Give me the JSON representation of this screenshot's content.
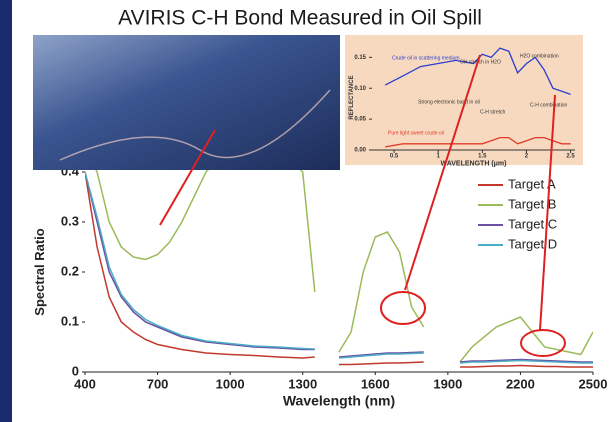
{
  "chart_data": [
    {
      "type": "line",
      "title": "AVIRIS C-H Bond Measured in Oil Spill",
      "xlabel": "Wavelength (nm)",
      "ylabel": "Spectral Ratio",
      "x": [
        400,
        450,
        500,
        550,
        600,
        650,
        700,
        750,
        800,
        900,
        1000,
        1100,
        1200,
        1300,
        1350,
        1400,
        1450,
        1500,
        1550,
        1600,
        1650,
        1700,
        1750,
        1800,
        1850,
        1950,
        2000,
        2050,
        2100,
        2150,
        2200,
        2250,
        2300,
        2350,
        2400,
        2450,
        2500
      ],
      "series": [
        {
          "name": "Target A",
          "color": "#c0392b",
          "values": [
            0.4,
            0.25,
            0.15,
            0.1,
            0.08,
            0.065,
            0.055,
            0.05,
            0.045,
            0.038,
            0.035,
            0.033,
            0.03,
            0.028,
            0.03,
            null,
            0.015,
            0.015,
            0.016,
            0.017,
            0.018,
            0.018,
            0.019,
            0.02,
            null,
            0.01,
            0.01,
            0.011,
            0.012,
            0.012,
            0.013,
            0.012,
            0.011,
            0.011,
            0.01,
            0.01,
            0.01
          ]
        },
        {
          "name": "Target B",
          "color": "#9bbb59",
          "values": [
            0.45,
            0.4,
            0.3,
            0.25,
            0.23,
            0.225,
            0.235,
            0.26,
            0.3,
            0.4,
            0.45,
            0.5,
            0.45,
            0.4,
            0.16,
            null,
            0.04,
            0.08,
            0.2,
            0.27,
            0.28,
            0.24,
            0.13,
            0.09,
            null,
            0.02,
            0.05,
            0.07,
            0.09,
            0.1,
            0.11,
            0.08,
            0.05,
            0.045,
            0.04,
            0.035,
            0.08
          ]
        },
        {
          "name": "Target C",
          "color": "#6a4fa3",
          "values": [
            0.4,
            0.3,
            0.2,
            0.15,
            0.12,
            0.1,
            0.09,
            0.08,
            0.07,
            0.06,
            0.055,
            0.05,
            0.048,
            0.045,
            0.045,
            null,
            0.03,
            0.032,
            0.034,
            0.036,
            0.038,
            0.038,
            0.039,
            0.04,
            null,
            0.02,
            0.022,
            0.022,
            0.023,
            0.024,
            0.025,
            0.024,
            0.023,
            0.022,
            0.021,
            0.02,
            0.02
          ]
        },
        {
          "name": "Target D",
          "color": "#4bacc6",
          "values": [
            0.4,
            0.31,
            0.21,
            0.155,
            0.125,
            0.105,
            0.093,
            0.083,
            0.073,
            0.062,
            0.057,
            0.052,
            0.05,
            0.047,
            0.046,
            null,
            0.028,
            0.03,
            0.032,
            0.034,
            0.036,
            0.036,
            0.037,
            0.038,
            null,
            0.018,
            0.02,
            0.02,
            0.021,
            0.022,
            0.023,
            0.022,
            0.021,
            0.02,
            0.019,
            0.018,
            0.018
          ]
        }
      ],
      "xlim": [
        400,
        2500
      ],
      "xticks": [
        400,
        700,
        1000,
        1300,
        1600,
        1900,
        2200,
        2500
      ],
      "ylim": [
        0,
        0.4
      ],
      "yticks": [
        0,
        0.1,
        0.2,
        0.3,
        0.4
      ]
    },
    {
      "type": "line",
      "xlabel": "WAVELENGTH (μm)",
      "ylabel": "REFLECTANCE",
      "x": [
        0.4,
        0.6,
        0.8,
        1.0,
        1.2,
        1.4,
        1.5,
        1.6,
        1.7,
        1.8,
        1.9,
        2.0,
        2.1,
        2.2,
        2.3,
        2.4,
        2.5
      ],
      "series": [
        {
          "color": "#2a3fd1",
          "values": [
            0.105,
            0.12,
            0.135,
            0.14,
            0.145,
            0.14,
            0.155,
            0.15,
            0.165,
            0.16,
            0.125,
            0.14,
            0.15,
            0.13,
            0.1,
            0.095,
            0.09
          ]
        },
        {
          "color": "#e03a2a",
          "values": [
            0.005,
            0.01,
            0.01,
            0.01,
            0.01,
            0.01,
            0.01,
            0.015,
            0.02,
            0.02,
            0.01,
            0.015,
            0.02,
            0.02,
            0.015,
            0.01,
            0.01
          ]
        }
      ],
      "xlim": [
        0.25,
        2.55
      ],
      "xticks": [
        0.5,
        1.0,
        1.5,
        2.0,
        2.5
      ],
      "ylim": [
        0,
        0.17
      ],
      "yticks": [
        {
          "value": 0,
          "label": "0.00"
        },
        0.05,
        {
          "value": 0.1,
          "label": "0.10"
        },
        0.15
      ],
      "annotations": [
        "Crude oil in scattering medium",
        "OH stretch in H2O",
        "Strong electronic band in oil",
        "C-H stretch",
        "H2O combination",
        "C-H combination",
        "Pure light sweet crude oil"
      ]
    }
  ]
}
